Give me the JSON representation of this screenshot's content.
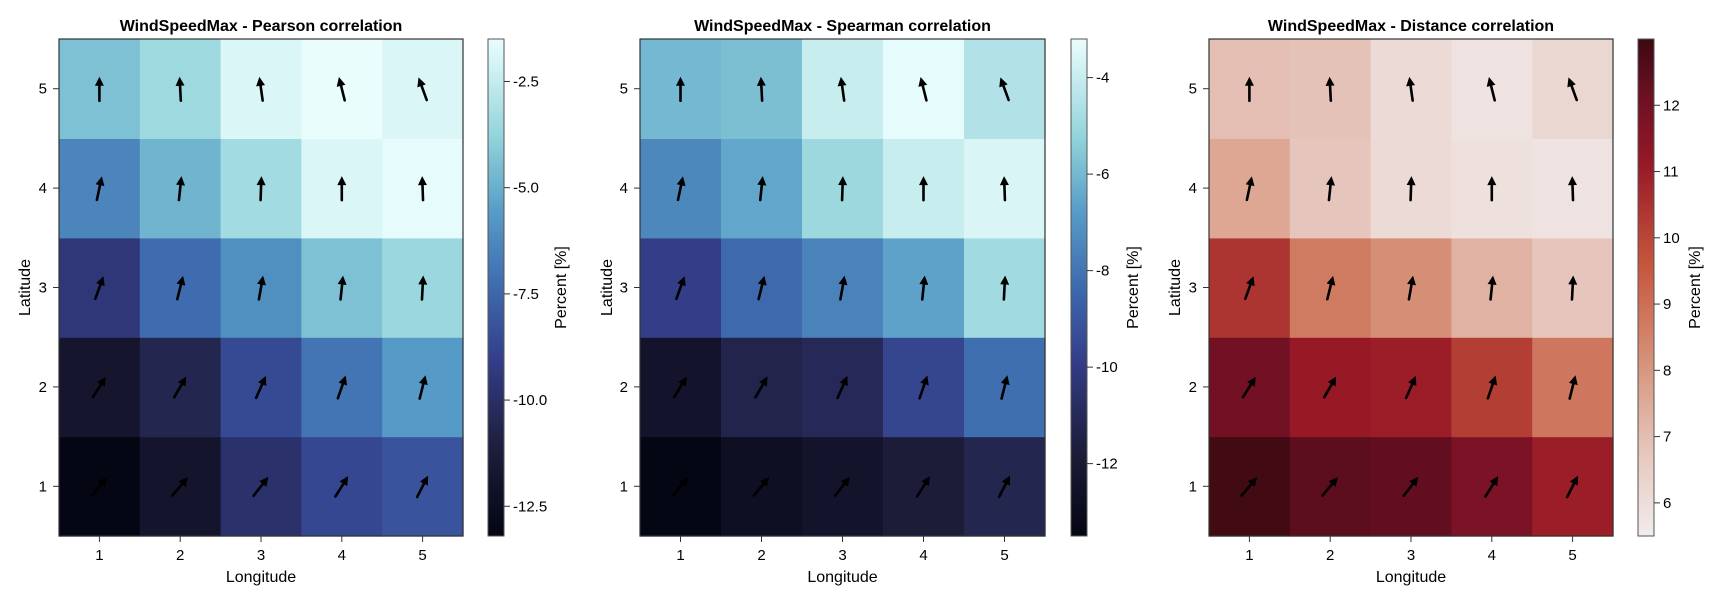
{
  "chart_data": [
    {
      "type": "heatmap",
      "title": "WindSpeedMax - Pearson correlation",
      "xlabel": "Longitude",
      "ylabel": "Latitude",
      "x": [
        1,
        2,
        3,
        4,
        5
      ],
      "y": [
        1,
        2,
        3,
        4,
        5
      ],
      "xlim": [
        0.5,
        5.5
      ],
      "ylim": [
        0.5,
        5.5
      ],
      "grid": false,
      "colormap": "ice",
      "colorbar": {
        "label": "Percent [%]",
        "range": [
          -13.2,
          -1.5
        ],
        "ticks": [
          -2.5,
          -5.0,
          -7.5,
          -10.0,
          -12.5
        ],
        "tick_labels": [
          "-2.5",
          "-5.0",
          "-7.5",
          "-10.0",
          "-12.5"
        ]
      },
      "values_rows_lat1_to_lat5": [
        [
          -13.2,
          -11.9,
          -9.9,
          -8.7,
          -8.2
        ],
        [
          -11.8,
          -10.6,
          -8.6,
          -7.0,
          -5.6
        ],
        [
          -9.5,
          -7.3,
          -6.0,
          -4.4,
          -3.6
        ],
        [
          -6.4,
          -4.8,
          -3.4,
          -1.9,
          -1.6
        ],
        [
          -4.4,
          -3.5,
          -1.9,
          -1.5,
          -1.9
        ]
      ],
      "arrow_angles_deg_rows_lat1_to_lat5": [
        [
          40,
          40,
          38,
          32,
          27
        ],
        [
          32,
          30,
          24,
          19,
          14
        ],
        [
          20,
          14,
          10,
          6,
          3
        ],
        [
          12,
          6,
          2,
          0,
          -2
        ],
        [
          0,
          -3,
          -8,
          -14,
          -20
        ]
      ]
    },
    {
      "type": "heatmap",
      "title": "WindSpeedMax - Spearman correlation",
      "xlabel": "Longitude",
      "ylabel": "Latitude",
      "x": [
        1,
        2,
        3,
        4,
        5
      ],
      "y": [
        1,
        2,
        3,
        4,
        5
      ],
      "xlim": [
        0.5,
        5.5
      ],
      "ylim": [
        0.5,
        5.5
      ],
      "grid": false,
      "colormap": "ice",
      "colorbar": {
        "label": "Percent [%]",
        "range": [
          -13.5,
          -3.2
        ],
        "ticks": [
          -4,
          -6,
          -8,
          -10,
          -12
        ],
        "tick_labels": [
          "-4",
          "-6",
          "-8",
          "-10",
          "-12"
        ]
      },
      "values_rows_lat1_to_lat5": [
        [
          -13.5,
          -12.8,
          -12.4,
          -11.8,
          -11.2
        ],
        [
          -12.4,
          -11.3,
          -11.0,
          -9.6,
          -8.2
        ],
        [
          -9.9,
          -8.4,
          -7.6,
          -6.6,
          -4.9
        ],
        [
          -7.4,
          -6.5,
          -5.0,
          -4.0,
          -3.6
        ],
        [
          -6.0,
          -5.8,
          -4.0,
          -3.3,
          -4.5
        ]
      ],
      "arrow_angles_deg_rows_lat1_to_lat5": [
        [
          40,
          40,
          38,
          32,
          27
        ],
        [
          32,
          30,
          24,
          19,
          14
        ],
        [
          20,
          14,
          10,
          6,
          3
        ],
        [
          12,
          6,
          2,
          0,
          -2
        ],
        [
          0,
          -3,
          -8,
          -14,
          -20
        ]
      ]
    },
    {
      "type": "heatmap",
      "title": "WindSpeedMax - Distance correlation",
      "xlabel": "Longitude",
      "ylabel": "Latitude",
      "x": [
        1,
        2,
        3,
        4,
        5
      ],
      "y": [
        1,
        2,
        3,
        4,
        5
      ],
      "xlim": [
        0.5,
        5.5
      ],
      "ylim": [
        0.5,
        5.5
      ],
      "grid": false,
      "colormap": "amp",
      "colorbar": {
        "label": "Percent [%]",
        "range": [
          5.5,
          13.0
        ],
        "ticks": [
          6,
          7,
          8,
          9,
          10,
          11,
          12
        ],
        "tick_labels": [
          "6",
          "7",
          "8",
          "9",
          "10",
          "11",
          "12"
        ]
      },
      "values_rows_lat1_to_lat5": [
        [
          12.9,
          12.4,
          12.3,
          11.8,
          11.0
        ],
        [
          12.0,
          11.1,
          11.0,
          10.2,
          8.8
        ],
        [
          10.4,
          8.7,
          8.2,
          7.3,
          6.8
        ],
        [
          7.6,
          6.8,
          6.1,
          5.9,
          5.8
        ],
        [
          7.0,
          6.9,
          6.1,
          5.8,
          6.2
        ]
      ],
      "arrow_angles_deg_rows_lat1_to_lat5": [
        [
          40,
          40,
          38,
          32,
          27
        ],
        [
          32,
          30,
          24,
          19,
          14
        ],
        [
          20,
          14,
          10,
          6,
          3
        ],
        [
          12,
          6,
          2,
          0,
          -2
        ],
        [
          0,
          -3,
          -8,
          -14,
          -20
        ]
      ]
    }
  ]
}
